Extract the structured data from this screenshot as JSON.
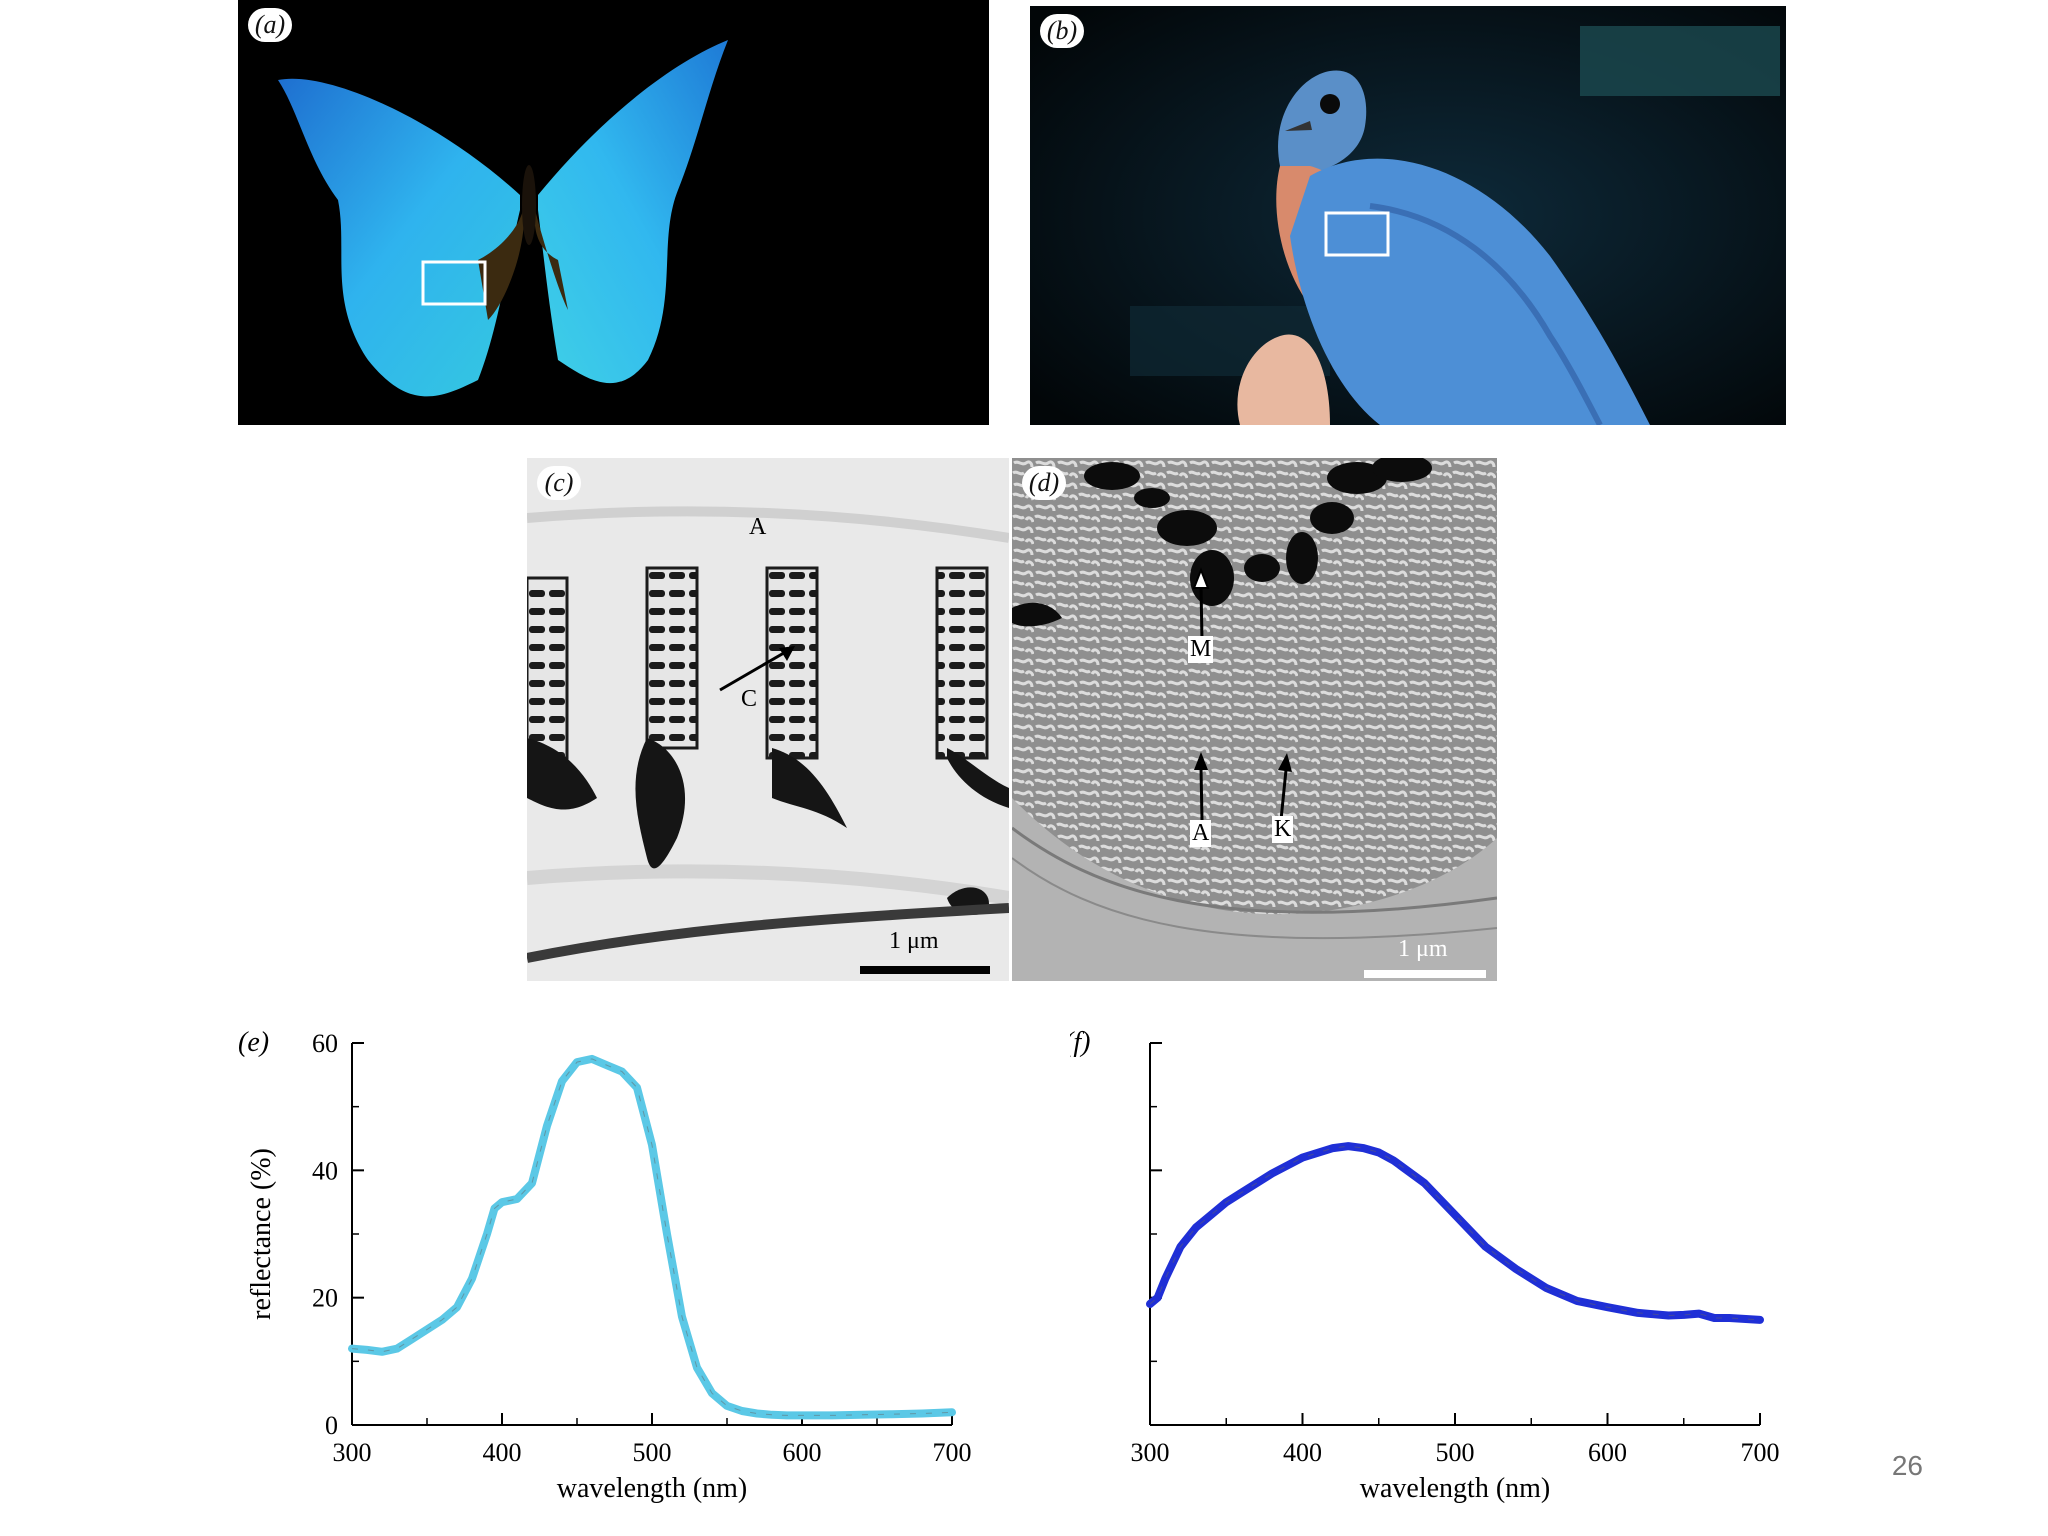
{
  "slide": {
    "page_number": "26"
  },
  "panels": {
    "a": {
      "label": "(a)"
    },
    "b": {
      "label": "(b)"
    },
    "c": {
      "label": "(c)",
      "annotations": {
        "A": "A",
        "C": "C"
      },
      "scale_bar": "1 μm"
    },
    "d": {
      "label": "(d)",
      "annotations": {
        "M": "M",
        "A": "A",
        "K": "K"
      },
      "scale_bar": "1 μm"
    }
  },
  "colors": {
    "butterfly_blue": "#2fb3ee",
    "bird_blue": "#4d8fd6",
    "curve_e": "#5bc8e6",
    "curve_f": "#1f2fd6"
  },
  "chart_data": [
    {
      "type": "line",
      "panel_label": "(e)",
      "title": "",
      "xlabel": "wavelength (nm)",
      "ylabel": "reflectance (%)",
      "xlim": [
        300,
        700
      ],
      "ylim": [
        0,
        60
      ],
      "x_ticks": [
        "300",
        "400",
        "500",
        "600",
        "700"
      ],
      "y_ticks": [
        "0",
        "20",
        "40",
        "60"
      ],
      "grid": false,
      "series": [
        {
          "x": [
            300,
            310,
            320,
            330,
            340,
            350,
            360,
            370,
            380,
            390,
            395,
            400,
            410,
            420,
            430,
            440,
            450,
            460,
            470,
            480,
            490,
            500,
            510,
            520,
            530,
            540,
            550,
            560,
            570,
            580,
            590,
            600,
            620,
            640,
            660,
            680,
            700
          ],
          "y": [
            12,
            11.8,
            11.5,
            12,
            13.5,
            15,
            16.5,
            18.5,
            23,
            30,
            34,
            35,
            35.5,
            38,
            47,
            54,
            57,
            57.5,
            56.5,
            55.5,
            53,
            44,
            30,
            17,
            9,
            5,
            3,
            2.2,
            1.8,
            1.6,
            1.5,
            1.5,
            1.5,
            1.6,
            1.7,
            1.8,
            2
          ]
        }
      ]
    },
    {
      "type": "line",
      "panel_label": "(f)",
      "title": "",
      "xlabel": "wavelength (nm)",
      "ylabel": "",
      "xlim": [
        300,
        700
      ],
      "ylim": [
        0,
        60
      ],
      "x_ticks": [
        "300",
        "400",
        "500",
        "600",
        "700"
      ],
      "y_ticks": [],
      "grid": false,
      "series": [
        {
          "x": [
            300,
            305,
            310,
            320,
            330,
            340,
            350,
            360,
            380,
            400,
            420,
            430,
            440,
            450,
            460,
            480,
            500,
            520,
            540,
            560,
            580,
            600,
            620,
            640,
            650,
            660,
            670,
            680,
            700
          ],
          "y": [
            19,
            20,
            23,
            28,
            31,
            33,
            35,
            36.5,
            39.5,
            42,
            43.5,
            43.8,
            43.5,
            42.8,
            41.5,
            38,
            33,
            28,
            24.5,
            21.5,
            19.5,
            18.5,
            17.6,
            17.2,
            17.3,
            17.5,
            16.8,
            16.8,
            16.5
          ]
        }
      ]
    }
  ]
}
